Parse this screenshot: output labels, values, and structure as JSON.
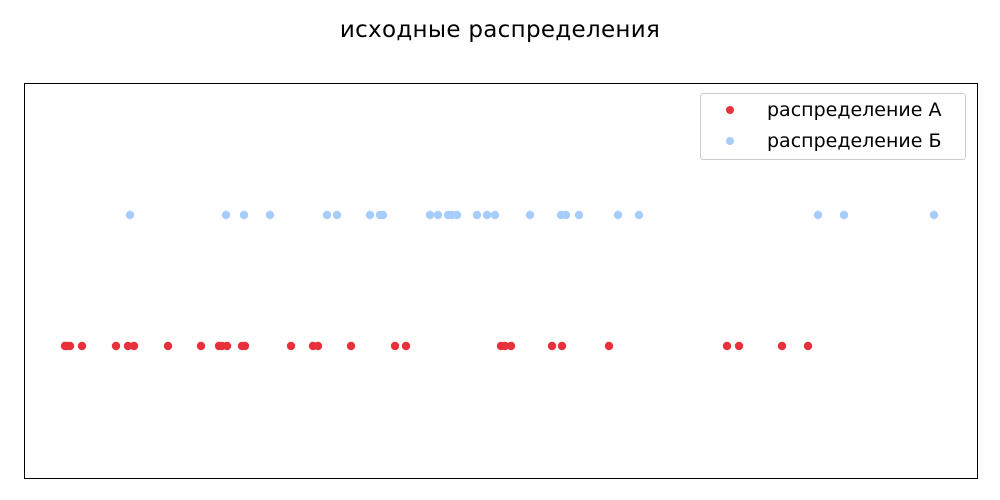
{
  "chart_data": {
    "type": "scatter",
    "title": "исходные распределения",
    "xlabel": "",
    "ylabel": "",
    "axes_ticks_visible": false,
    "grid": false,
    "legend_position": "top-right",
    "series": [
      {
        "name": "распределение А",
        "color": "#e8313a",
        "y": 0,
        "x": [
          65,
          67,
          70,
          82,
          116,
          128,
          134,
          168,
          201,
          219,
          222,
          227,
          242,
          245,
          291,
          313,
          318,
          351,
          395,
          406,
          501,
          505,
          511,
          552,
          562,
          609,
          727,
          739,
          782,
          808
        ]
      },
      {
        "name": "распределение Б",
        "color": "#a7cdfc",
        "y": 1,
        "x": [
          130,
          226,
          244,
          270,
          327,
          337,
          370,
          380,
          383,
          430,
          438,
          448,
          452,
          457,
          477,
          487,
          495,
          530,
          561,
          566,
          579,
          618,
          639,
          818,
          844,
          934
        ]
      }
    ]
  }
}
